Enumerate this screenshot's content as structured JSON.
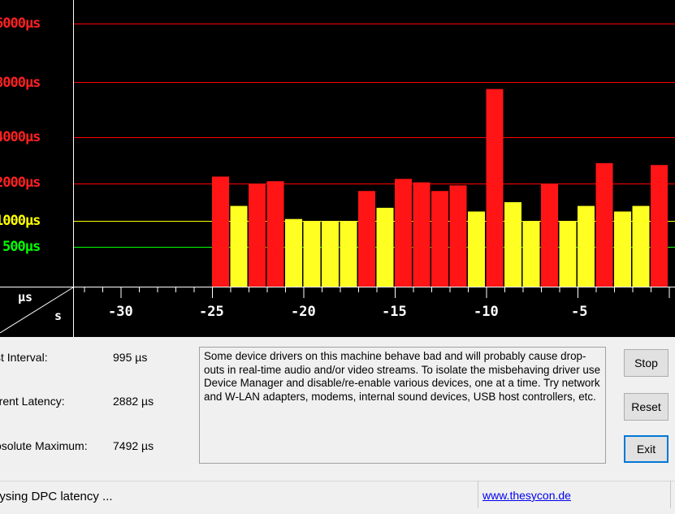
{
  "chart_data": {
    "type": "bar",
    "y_labels": [
      {
        "text": "6000µs",
        "color": "#ff2020"
      },
      {
        "text": "8000µs",
        "color": "#ff2020"
      },
      {
        "text": "4000µs",
        "color": "#ff2020"
      },
      {
        "text": "2000µs",
        "color": "#ff2020"
      },
      {
        "text": "1000µs",
        "color": "#ffff00"
      },
      {
        "text": "500µs",
        "color": "#00ff00"
      }
    ],
    "x_ticks": [
      "-30",
      "-25",
      "-20",
      "-15",
      "-10",
      "-5"
    ],
    "corner_top": "µs",
    "corner_bottom": "s",
    "bars": [
      {
        "value": 2300,
        "color": "red"
      },
      {
        "value": 1400,
        "color": "yellow"
      },
      {
        "value": 2000,
        "color": "red"
      },
      {
        "value": 2100,
        "color": "red"
      },
      {
        "value": 1050,
        "color": "yellow"
      },
      {
        "value": 1000,
        "color": "yellow"
      },
      {
        "value": 1000,
        "color": "yellow"
      },
      {
        "value": 1000,
        "color": "yellow"
      },
      {
        "value": 1800,
        "color": "red"
      },
      {
        "value": 1350,
        "color": "yellow"
      },
      {
        "value": 2200,
        "color": "red"
      },
      {
        "value": 2050,
        "color": "red"
      },
      {
        "value": 1800,
        "color": "red"
      },
      {
        "value": 1950,
        "color": "red"
      },
      {
        "value": 1250,
        "color": "yellow"
      },
      {
        "value": 7492,
        "color": "red"
      },
      {
        "value": 1500,
        "color": "yellow"
      },
      {
        "value": 1000,
        "color": "yellow"
      },
      {
        "value": 2000,
        "color": "red"
      },
      {
        "value": 1000,
        "color": "yellow"
      },
      {
        "value": 1400,
        "color": "yellow"
      },
      {
        "value": 2882,
        "color": "red"
      },
      {
        "value": 1250,
        "color": "yellow"
      },
      {
        "value": 1400,
        "color": "yellow"
      },
      {
        "value": 2800,
        "color": "red"
      }
    ]
  },
  "info": {
    "last_interval_label": "st Interval:",
    "last_interval_value": "995 µs",
    "current_latency_label": "rrent Latency:",
    "current_latency_value": "2882 µs",
    "absolute_max_label": "osolute Maximum:",
    "absolute_max_value": "7492 µs"
  },
  "message": "Some device drivers on this machine behave bad and will probably cause drop-outs in real-time audio and/or video streams. To isolate the misbehaving driver use Device Manager and disable/re-enable various devices, one at a time. Try network and W-LAN adapters, modems, internal sound devices, USB host controllers, etc.",
  "buttons": {
    "stop": "Stop",
    "reset": "Reset",
    "exit": "Exit"
  },
  "status": {
    "text": "lysing DPC latency ...",
    "link": "www.thesycon.de"
  },
  "colors": {
    "red": "#ff0000",
    "yellow": "#ffff00",
    "green": "#00ff00",
    "bar_red": "#ff1515",
    "bar_yellow": "#ffff22"
  }
}
